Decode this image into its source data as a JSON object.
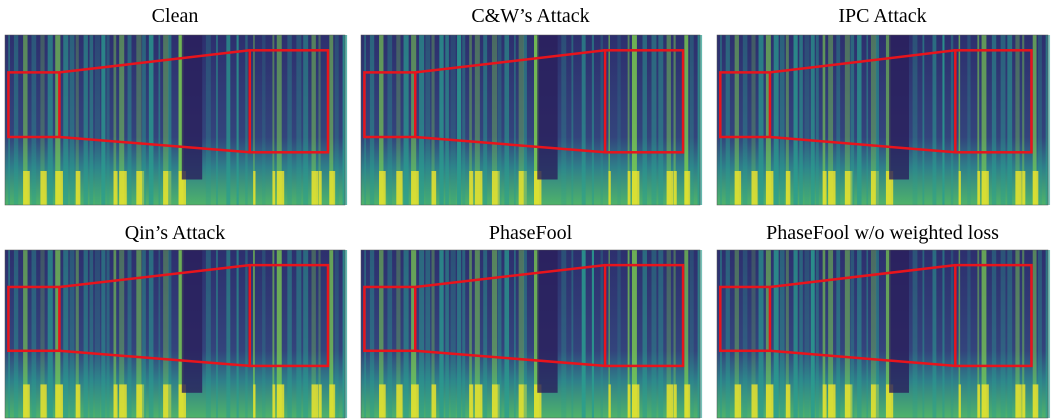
{
  "panels": [
    {
      "title": "Clean"
    },
    {
      "title": "C&W’s Attack"
    },
    {
      "title": "IPC Attack"
    },
    {
      "title": "Qin’s Attack"
    },
    {
      "title": "PhaseFool"
    },
    {
      "title": "PhaseFool w/o weighted loss"
    }
  ]
}
